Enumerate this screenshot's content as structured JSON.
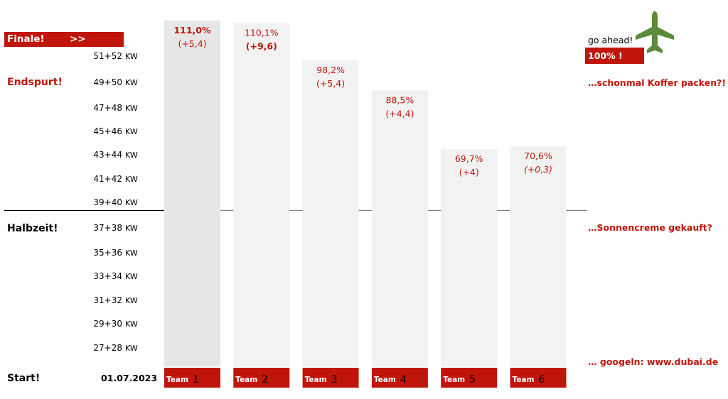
{
  "left_labels": {
    "finale": "Finale!",
    "finale_arrows": ">>",
    "endspurt": "Endspurt!",
    "halbzeit": "Halbzeit!",
    "start": "Start!",
    "start_date": "01.07.2023"
  },
  "kw_unit": "KW",
  "kw_ticks": [
    "51+52",
    "49+50",
    "47+48",
    "45+46",
    "43+44",
    "41+42",
    "39+40",
    "37+38",
    "35+36",
    "33+34",
    "31+32",
    "29+30",
    "27+28"
  ],
  "right_notes": {
    "go_ahead": "go ahead!",
    "hundred": "100% !",
    "koffer": "…schonmal Koffer packen?!",
    "sonnencreme": "…Sonnencreme gekauft?",
    "googeln": "… googeln:  www.dubai.de"
  },
  "colors": {
    "accent": "#c0150b",
    "bar_light": "#f2f2f2",
    "bar_leader": "#e6e6e6",
    "plane": "#5a8a3a",
    "midline": "#7f7f7f"
  },
  "icons": {
    "plane": "airplane-icon"
  },
  "chart_data": {
    "type": "bar",
    "categories": [
      "Team 1",
      "Team 2",
      "Team 3",
      "Team 4",
      "Team 5",
      "Team 6"
    ],
    "team_word": "Team",
    "team_numbers": [
      "1",
      "2",
      "3",
      "4",
      "5",
      "6"
    ],
    "values": [
      111.0,
      110.1,
      98.2,
      88.5,
      69.7,
      70.6
    ],
    "value_labels": [
      "111,0%",
      "110,1%",
      "98,2%",
      "88,5%",
      "69,7%",
      "70,6%"
    ],
    "delta_labels": [
      "(+5,4)",
      "(+9,6)",
      "(+5,4)",
      "(+4,4)",
      "(+4)",
      "(+0,3)"
    ],
    "ylim": [
      0,
      113
    ],
    "midline_value": 50
  }
}
